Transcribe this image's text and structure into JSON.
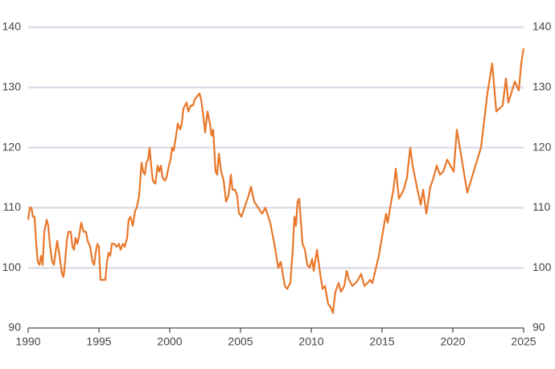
{
  "chart_data": {
    "type": "line",
    "x": [
      1990.0,
      1990.11,
      1990.23,
      1990.34,
      1990.45,
      1990.57,
      1990.68,
      1990.8,
      1990.91,
      1991.02,
      1991.14,
      1991.31,
      1991.42,
      1991.53,
      1991.7,
      1991.82,
      1991.93,
      1992.05,
      1992.22,
      1992.39,
      1992.5,
      1992.61,
      1992.73,
      1992.84,
      1993.01,
      1993.13,
      1993.24,
      1993.35,
      1993.47,
      1993.58,
      1993.75,
      1993.92,
      1994.09,
      1994.2,
      1994.38,
      1994.55,
      1994.66,
      1994.77,
      1994.89,
      1995.0,
      1995.11,
      1995.28,
      1995.45,
      1995.57,
      1995.68,
      1995.8,
      1995.91,
      1996.08,
      1996.25,
      1996.42,
      1996.53,
      1996.7,
      1996.82,
      1996.99,
      1997.1,
      1997.22,
      1997.39,
      1997.56,
      1997.67,
      1997.84,
      1998.01,
      1998.13,
      1998.24,
      1998.35,
      1998.47,
      1998.58,
      1998.69,
      1998.81,
      1998.98,
      1999.15,
      1999.26,
      1999.38,
      1999.49,
      1999.66,
      1999.77,
      1999.94,
      2000.06,
      2000.17,
      2000.28,
      2000.45,
      2000.57,
      2000.74,
      2000.85,
      2000.97,
      2001.08,
      2001.19,
      2001.31,
      2001.48,
      2001.65,
      2001.76,
      2001.93,
      2002.1,
      2002.22,
      2002.39,
      2002.5,
      2002.67,
      2002.84,
      2002.95,
      2003.07,
      2003.24,
      2003.35,
      2003.47,
      2003.64,
      2003.81,
      2003.98,
      2004.15,
      2004.32,
      2004.43,
      2004.6,
      2004.77,
      2004.89,
      2004.94,
      2005.06,
      2005.28,
      2005.57,
      2005.74,
      2005.97,
      2006.25,
      2006.53,
      2006.76,
      2007.1,
      2007.39,
      2007.67,
      2007.84,
      2008.13,
      2008.3,
      2008.52,
      2008.69,
      2008.81,
      2008.92,
      2009.03,
      2009.15,
      2009.38,
      2009.55,
      2009.72,
      2009.89,
      2010.06,
      2010.17,
      2010.4,
      2010.63,
      2010.8,
      2010.97,
      2011.19,
      2011.36,
      2011.53,
      2011.7,
      2011.93,
      2012.1,
      2012.33,
      2012.5,
      2012.67,
      2012.9,
      2013.13,
      2013.3,
      2013.52,
      2013.75,
      2013.98,
      2014.15,
      2014.32,
      2014.77,
      2015.06,
      2015.28,
      2015.4,
      2015.57,
      2015.8,
      2015.97,
      2016.19,
      2016.53,
      2016.76,
      2016.99,
      2017.16,
      2017.5,
      2017.73,
      2017.9,
      2018.13,
      2018.41,
      2018.64,
      2018.86,
      2019.09,
      2019.32,
      2019.6,
      2019.83,
      2020.06,
      2020.28,
      2021.02,
      2021.53,
      2021.99,
      2022.44,
      2022.78,
      2023.07,
      2023.52,
      2023.75,
      2023.92,
      2024.38,
      2024.66,
      2024.83,
      2025.0
    ],
    "series": [
      {
        "color": "#e8772a",
        "values": [
          108,
          110,
          110,
          108.5,
          108.5,
          104,
          101,
          100.5,
          102,
          100.5,
          106,
          108,
          107,
          104,
          101,
          100.5,
          102.5,
          104.5,
          102,
          99,
          98.5,
          101,
          104.5,
          106,
          106,
          103.5,
          103,
          105,
          104,
          105,
          107.5,
          106,
          106,
          104.5,
          103.5,
          101,
          100.5,
          102.5,
          104,
          103.5,
          98,
          98,
          98,
          101,
          102.5,
          102,
          104,
          104,
          103.5,
          104,
          103,
          104,
          103.5,
          105,
          108,
          108.5,
          107,
          109.5,
          110,
          112,
          117.5,
          116,
          115.5,
          117.5,
          118,
          120,
          117,
          114.5,
          114,
          117,
          116,
          117,
          115,
          114.5,
          115,
          117,
          118,
          120,
          119.5,
          122,
          124,
          123,
          124,
          126.5,
          127,
          127.5,
          126,
          127,
          127,
          128,
          128.5,
          129,
          128,
          125,
          122.5,
          126,
          124,
          122,
          123,
          116,
          115.5,
          119,
          116,
          114.5,
          111,
          112,
          115.5,
          113,
          113,
          112,
          109,
          109,
          108.5,
          110,
          112,
          113.5,
          111,
          110,
          109,
          110,
          107.5,
          104,
          100,
          101,
          97,
          96.5,
          97.5,
          103,
          108.5,
          107,
          111,
          111.5,
          104,
          103,
          100.5,
          100,
          101.5,
          99.5,
          103,
          99,
          96.5,
          97,
          94,
          93.5,
          92.5,
          96,
          97.5,
          96,
          97,
          99.5,
          98,
          97,
          97.5,
          98,
          99,
          97,
          97.5,
          98,
          97.5,
          102,
          106,
          109,
          107.5,
          110,
          113,
          116.5,
          111.5,
          113,
          115,
          120,
          117,
          113,
          110.5,
          113,
          109,
          113.5,
          115,
          117,
          115.5,
          116,
          118,
          117,
          116,
          123,
          112.5,
          116.5,
          120,
          129,
          134,
          126,
          127,
          131.5,
          127.5,
          131,
          129.5,
          134,
          136.5
        ]
      }
    ],
    "xlim": [
      1990,
      2025
    ],
    "xticks": [
      1990,
      1995,
      2000,
      2005,
      2010,
      2015,
      2020,
      2025
    ],
    "ylim": [
      90,
      140
    ],
    "yticks": [
      90,
      100,
      110,
      120,
      130,
      140
    ],
    "grid": true
  }
}
